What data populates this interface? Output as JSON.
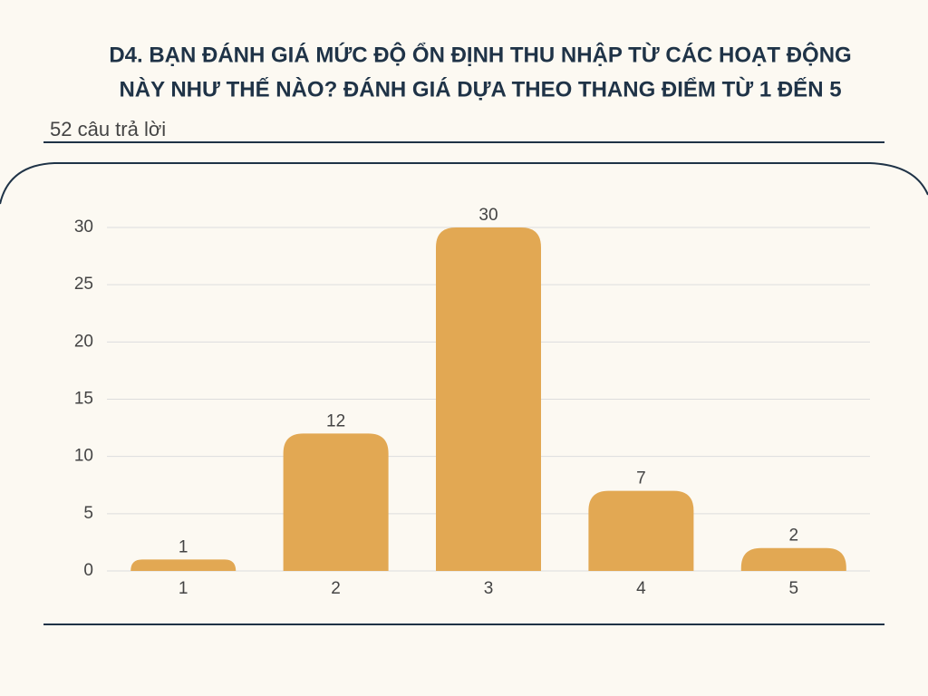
{
  "chart_data": {
    "type": "bar",
    "title": [
      "D4. BẠN ĐÁNH GIÁ MỨC ĐỘ ỔN ĐỊNH THU NHẬP TỪ CÁC HOẠT ĐỘNG",
      "NÀY NHƯ THẾ NÀO? ĐÁNH GIÁ DỰA THEO THANG ĐIỂM TỪ 1 ĐẾN 5"
    ],
    "subtitle": "52 câu trả lời",
    "categories": [
      "1",
      "2",
      "3",
      "4",
      "5"
    ],
    "values": [
      1,
      12,
      30,
      7,
      2
    ],
    "color": "#e2a853",
    "ylim": [
      0,
      30
    ],
    "yticks": [
      0,
      5,
      10,
      15,
      20,
      25,
      30
    ],
    "grid": true
  }
}
